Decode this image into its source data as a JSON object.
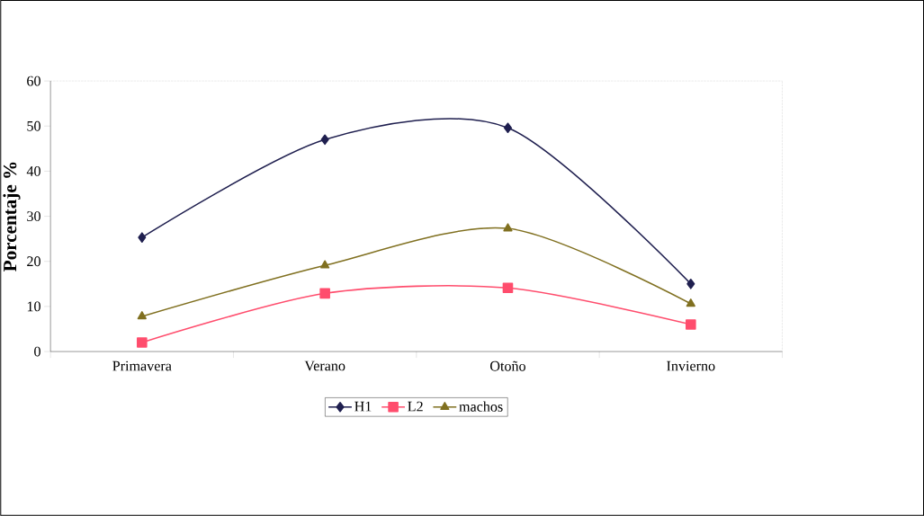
{
  "chart_data": {
    "type": "line",
    "ylabel": "Porcentaje %",
    "categories": [
      "Primavera",
      "Verano",
      "Otoño",
      "Invierno"
    ],
    "series": [
      {
        "name": "H1",
        "color": "#1f1f4f",
        "marker": "diamond",
        "values": [
          25.3,
          47,
          49.6,
          15
        ]
      },
      {
        "name": "L2",
        "color": "#ff4d6d",
        "marker": "square",
        "values": [
          2,
          12.9,
          14.1,
          6
        ]
      },
      {
        "name": "machos",
        "color": "#807020",
        "marker": "triangle",
        "values": [
          7.8,
          19.1,
          27.3,
          10.6
        ]
      }
    ],
    "ylim": [
      0,
      60
    ],
    "yticks": [
      0,
      10,
      20,
      30,
      40,
      50,
      60
    ],
    "legend": "bottom",
    "grid": false
  }
}
